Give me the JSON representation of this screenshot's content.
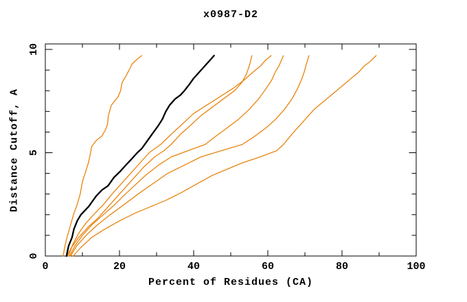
{
  "page": {
    "background": "#ffffff"
  },
  "chart_data": {
    "type": "line",
    "title": "x0987-D2",
    "xlabel": "Percent of Residues (CA)",
    "ylabel": "Distance Cutoff, A",
    "xlim": [
      0,
      100
    ],
    "ylim": [
      0,
      10
    ],
    "grid": false,
    "legend": "none",
    "axis_color": "#000000",
    "x_major_ticks": [
      0,
      20,
      40,
      60,
      80,
      100
    ],
    "x_minor_ticks": [
      10,
      30,
      50,
      70,
      90
    ],
    "x_tick_labels": [
      "0",
      "20",
      "40",
      "60",
      "80",
      "100"
    ],
    "y_major_ticks": [
      0,
      5,
      10
    ],
    "y_minor_ticks": [
      1,
      2,
      3,
      4,
      6,
      7,
      8,
      9
    ],
    "y_tick_labels": [
      "0",
      "5",
      "10"
    ],
    "series": [
      {
        "name": "orange-model-1",
        "color": "#e8830d",
        "width": 1.3,
        "points": [
          [
            4.8,
            0
          ],
          [
            5.3,
            0.5
          ],
          [
            6.0,
            1.0
          ],
          [
            6.8,
            1.5
          ],
          [
            7.6,
            2.0
          ],
          [
            8.6,
            2.5
          ],
          [
            9.4,
            3.0
          ],
          [
            10.0,
            3.6
          ],
          [
            10.9,
            4.1
          ],
          [
            11.6,
            4.5
          ],
          [
            12.1,
            4.9
          ],
          [
            12.5,
            5.3
          ],
          [
            13.8,
            5.6
          ],
          [
            15.2,
            5.8
          ],
          [
            16.2,
            6.1
          ],
          [
            16.8,
            6.4
          ],
          [
            17.0,
            6.8
          ],
          [
            17.8,
            7.3
          ],
          [
            19.6,
            7.7
          ],
          [
            20.3,
            8.0
          ],
          [
            20.7,
            8.4
          ],
          [
            21.7,
            8.7
          ],
          [
            22.6,
            9.0
          ],
          [
            23.4,
            9.3
          ],
          [
            24.6,
            9.5
          ],
          [
            26.0,
            9.7
          ]
        ]
      },
      {
        "name": "orange-model-2",
        "color": "#e8830d",
        "width": 1.3,
        "points": [
          [
            5.8,
            0
          ],
          [
            7.0,
            0.4
          ],
          [
            9.0,
            0.9
          ],
          [
            11.5,
            1.4
          ],
          [
            14.0,
            1.8
          ],
          [
            16.5,
            2.3
          ],
          [
            19.0,
            2.8
          ],
          [
            21.5,
            3.3
          ],
          [
            24.0,
            3.8
          ],
          [
            26.5,
            4.3
          ],
          [
            29.5,
            4.8
          ],
          [
            32.0,
            5.1
          ],
          [
            33.9,
            5.4
          ],
          [
            36.5,
            5.9
          ],
          [
            39.0,
            6.3
          ],
          [
            42.0,
            6.8
          ],
          [
            45.0,
            7.2
          ],
          [
            48.0,
            7.6
          ],
          [
            51.0,
            8.0
          ],
          [
            53.0,
            8.4
          ],
          [
            54.2,
            8.8
          ],
          [
            55.0,
            9.2
          ],
          [
            55.7,
            9.7
          ]
        ]
      },
      {
        "name": "orange-model-3",
        "color": "#e8830d",
        "width": 1.3,
        "points": [
          [
            6.2,
            0
          ],
          [
            7.5,
            0.6
          ],
          [
            9.0,
            1.1
          ],
          [
            11.0,
            1.6
          ],
          [
            13.0,
            2.0
          ],
          [
            15.7,
            2.5
          ],
          [
            18.0,
            3.0
          ],
          [
            20.5,
            3.5
          ],
          [
            23.0,
            4.0
          ],
          [
            25.5,
            4.5
          ],
          [
            28.0,
            5.0
          ],
          [
            31.1,
            5.4
          ],
          [
            34.0,
            5.9
          ],
          [
            37.0,
            6.4
          ],
          [
            40.0,
            6.9
          ],
          [
            43.5,
            7.3
          ],
          [
            47.0,
            7.7
          ],
          [
            50.5,
            8.1
          ],
          [
            53.5,
            8.5
          ],
          [
            56.0,
            8.9
          ],
          [
            58.0,
            9.2
          ],
          [
            59.5,
            9.5
          ],
          [
            60.9,
            9.7
          ]
        ]
      },
      {
        "name": "orange-model-4",
        "color": "#e8830d",
        "width": 1.3,
        "points": [
          [
            6.5,
            0
          ],
          [
            8.0,
            0.5
          ],
          [
            10.0,
            1.0
          ],
          [
            12.5,
            1.5
          ],
          [
            15.0,
            1.9
          ],
          [
            18.2,
            2.4
          ],
          [
            21.0,
            2.9
          ],
          [
            24.0,
            3.4
          ],
          [
            27.0,
            3.9
          ],
          [
            30.5,
            4.4
          ],
          [
            34.0,
            4.8
          ],
          [
            38.5,
            5.1
          ],
          [
            43.1,
            5.4
          ],
          [
            46.0,
            5.8
          ],
          [
            49.0,
            6.2
          ],
          [
            52.0,
            6.6
          ],
          [
            55.0,
            7.1
          ],
          [
            57.5,
            7.6
          ],
          [
            59.5,
            8.1
          ],
          [
            61.0,
            8.5
          ],
          [
            62.0,
            8.9
          ],
          [
            63.0,
            9.2
          ],
          [
            63.7,
            9.5
          ],
          [
            64.2,
            9.7
          ]
        ]
      },
      {
        "name": "orange-model-5",
        "color": "#e8830d",
        "width": 1.3,
        "points": [
          [
            6.8,
            0
          ],
          [
            8.5,
            0.5
          ],
          [
            11.0,
            1.0
          ],
          [
            14.0,
            1.5
          ],
          [
            17.5,
            2.0
          ],
          [
            21.3,
            2.5
          ],
          [
            25.0,
            3.0
          ],
          [
            29.0,
            3.5
          ],
          [
            33.0,
            4.0
          ],
          [
            37.5,
            4.4
          ],
          [
            42.0,
            4.8
          ],
          [
            47.5,
            5.1
          ],
          [
            53.1,
            5.4
          ],
          [
            56.5,
            5.8
          ],
          [
            59.5,
            6.2
          ],
          [
            62.0,
            6.6
          ],
          [
            64.5,
            7.1
          ],
          [
            66.5,
            7.6
          ],
          [
            68.0,
            8.1
          ],
          [
            69.0,
            8.5
          ],
          [
            69.8,
            8.9
          ],
          [
            70.4,
            9.3
          ],
          [
            71.1,
            9.7
          ]
        ]
      },
      {
        "name": "orange-model-6",
        "color": "#e8830d",
        "width": 1.3,
        "points": [
          [
            7.5,
            0
          ],
          [
            9.5,
            0.4
          ],
          [
            12.5,
            0.9
          ],
          [
            16.0,
            1.3
          ],
          [
            20.0,
            1.7
          ],
          [
            24.5,
            2.1
          ],
          [
            28.5,
            2.4
          ],
          [
            32.6,
            2.7
          ],
          [
            37.0,
            3.1
          ],
          [
            41.0,
            3.5
          ],
          [
            45.0,
            3.9
          ],
          [
            49.0,
            4.2
          ],
          [
            53.0,
            4.5
          ],
          [
            58.0,
            4.8
          ],
          [
            62.4,
            5.1
          ],
          [
            64.2,
            5.4
          ],
          [
            66.5,
            5.9
          ],
          [
            68.5,
            6.3
          ],
          [
            70.5,
            6.7
          ],
          [
            72.5,
            7.1
          ],
          [
            74.5,
            7.4
          ],
          [
            76.5,
            7.7
          ],
          [
            78.5,
            8.0
          ],
          [
            80.5,
            8.3
          ],
          [
            82.5,
            8.6
          ],
          [
            84.5,
            8.9
          ],
          [
            86.0,
            9.2
          ],
          [
            87.5,
            9.4
          ],
          [
            89.2,
            9.7
          ]
        ]
      },
      {
        "name": "black-model",
        "color": "#000000",
        "width": 2.3,
        "points": [
          [
            5.7,
            0
          ],
          [
            6.3,
            0.5
          ],
          [
            7.2,
            0.9
          ],
          [
            7.7,
            1.3
          ],
          [
            8.6,
            1.7
          ],
          [
            9.6,
            2.0
          ],
          [
            11.7,
            2.4
          ],
          [
            13.7,
            2.9
          ],
          [
            15.3,
            3.2
          ],
          [
            16.9,
            3.4
          ],
          [
            18.5,
            3.8
          ],
          [
            20.2,
            4.1
          ],
          [
            21.7,
            4.4
          ],
          [
            23.3,
            4.7
          ],
          [
            24.8,
            5.0
          ],
          [
            26.0,
            5.2
          ],
          [
            27.2,
            5.5
          ],
          [
            28.8,
            5.9
          ],
          [
            30.4,
            6.3
          ],
          [
            31.5,
            6.6
          ],
          [
            32.5,
            7.0
          ],
          [
            33.5,
            7.3
          ],
          [
            35.0,
            7.6
          ],
          [
            36.5,
            7.8
          ],
          [
            37.5,
            8.0
          ],
          [
            38.8,
            8.3
          ],
          [
            40.0,
            8.6
          ],
          [
            41.5,
            8.9
          ],
          [
            42.5,
            9.1
          ],
          [
            43.5,
            9.3
          ],
          [
            44.5,
            9.5
          ],
          [
            45.5,
            9.7
          ]
        ]
      }
    ]
  }
}
